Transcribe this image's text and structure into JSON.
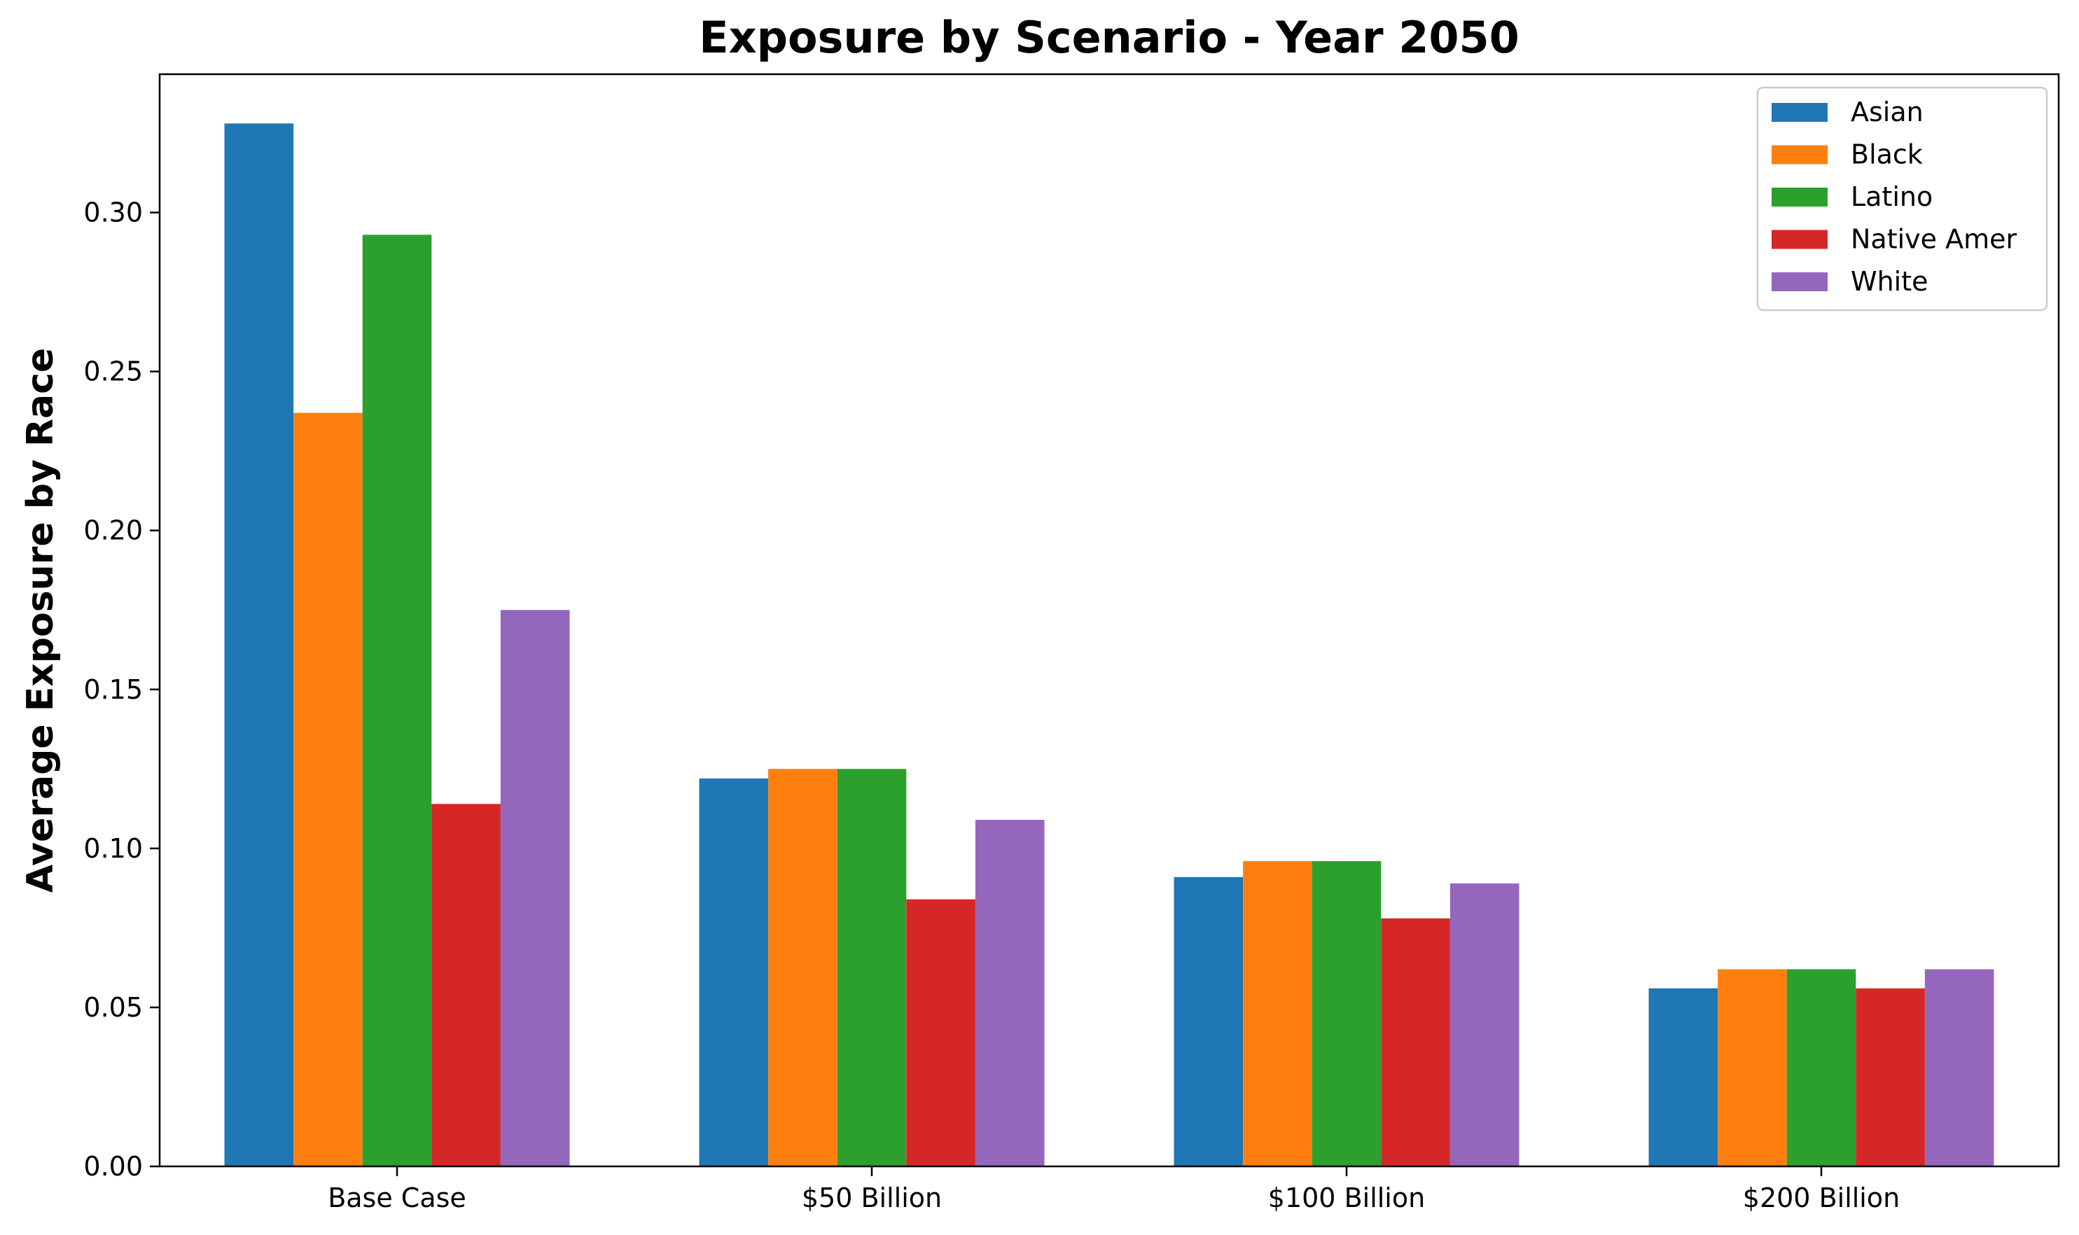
{
  "chart_data": {
    "type": "bar",
    "title": "Exposure by Scenario - Year 2050",
    "xlabel": "",
    "ylabel": "Average Exposure by Race",
    "categories": [
      "Base Case",
      "$50 Billion",
      "$100 Billion",
      "$200 Billion"
    ],
    "series": [
      {
        "name": "Asian",
        "color": "#1f77b4",
        "values": [
          0.328,
          0.122,
          0.091,
          0.056
        ]
      },
      {
        "name": "Black",
        "color": "#ff7f0e",
        "values": [
          0.237,
          0.125,
          0.096,
          0.062
        ]
      },
      {
        "name": "Latino",
        "color": "#2ca02c",
        "values": [
          0.293,
          0.125,
          0.096,
          0.062
        ]
      },
      {
        "name": "Native Amer",
        "color": "#d62728",
        "values": [
          0.114,
          0.084,
          0.078,
          0.056
        ]
      },
      {
        "name": "White",
        "color": "#9467bd",
        "values": [
          0.175,
          0.109,
          0.089,
          0.062
        ]
      }
    ],
    "ylim": [
      0,
      0.3435
    ],
    "yticks": [
      "0.00",
      "0.05",
      "0.10",
      "0.15",
      "0.20",
      "0.25",
      "0.30"
    ],
    "grid": false,
    "legend_position": "top-right"
  }
}
